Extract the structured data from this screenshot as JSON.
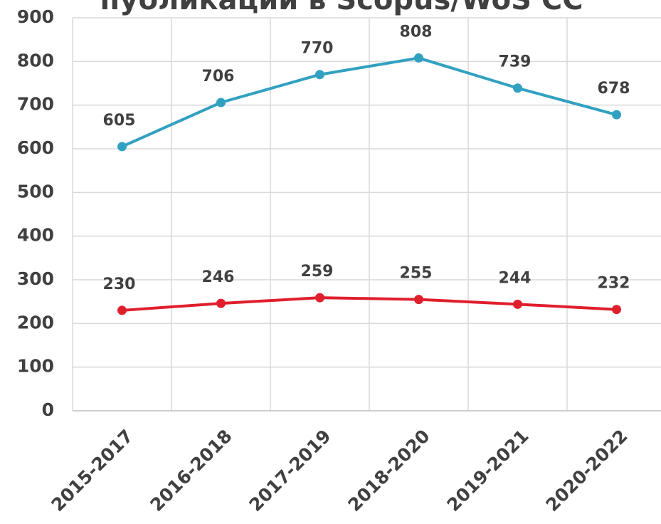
{
  "chart_data": {
    "type": "line",
    "title": "публикации в Scopus/WoS CC",
    "categories": [
      "2015-2017",
      "2016-2018",
      "2017-2019",
      "2018-2020",
      "2019-2021",
      "2020-2022"
    ],
    "series": [
      {
        "color": "#31a1c1",
        "values": [
          605,
          706,
          770,
          808,
          739,
          678
        ]
      },
      {
        "color": "#e01f2d",
        "values": [
          230,
          246,
          259,
          255,
          244,
          232
        ]
      }
    ],
    "ylim": [
      0,
      900
    ],
    "yticks": [
      0,
      100,
      200,
      300,
      400,
      500,
      600,
      700,
      800,
      900
    ],
    "grid": true
  }
}
